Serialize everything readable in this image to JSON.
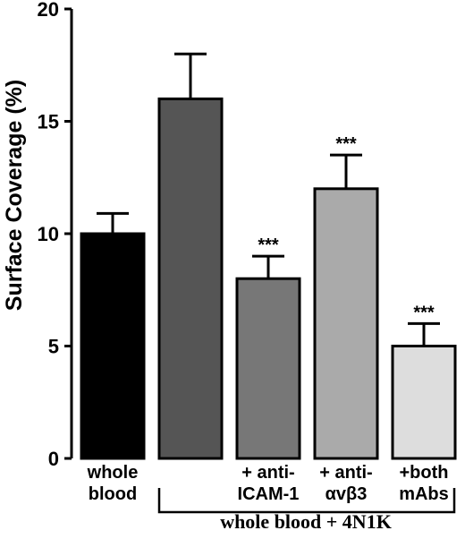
{
  "chart_data": {
    "type": "bar",
    "ylabel": "Surface Coverage (%)",
    "ylim": [
      0,
      20
    ],
    "yticks": [
      "0",
      "5",
      "10",
      "15",
      "20"
    ],
    "categories": [
      {
        "lines": [
          "whole",
          "blood"
        ]
      },
      {
        "lines": []
      },
      {
        "lines": [
          "+ anti-",
          "ICAM-1"
        ]
      },
      {
        "lines": [
          "+ anti-",
          "αvβ3"
        ]
      },
      {
        "lines": [
          "+both",
          "mAbs"
        ]
      }
    ],
    "values": [
      10.0,
      16.0,
      8.0,
      12.0,
      5.0
    ],
    "errors": [
      0.9,
      2.0,
      1.0,
      1.5,
      1.0
    ],
    "significance": [
      "",
      "",
      "***",
      "***",
      "***"
    ],
    "colors": [
      "#000000",
      "#555555",
      "#777777",
      "#aaaaaa",
      "#dddddd"
    ],
    "group_label": "whole blood + 4N1K",
    "grid": false
  }
}
